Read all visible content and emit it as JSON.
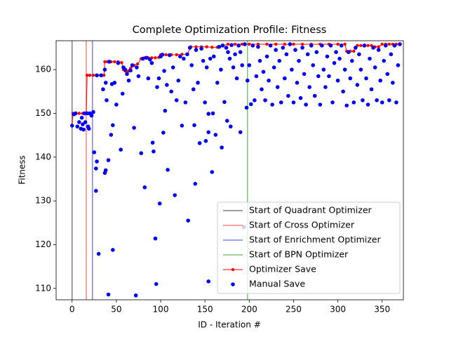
{
  "chart_data": {
    "type": "scatter",
    "title": "Complete Optimization Profile: Fitness",
    "x_label": "ID - Iteration #",
    "y_label": "Fitness",
    "xlim": [
      -18,
      374
    ],
    "ylim": [
      107.4,
      166.6
    ],
    "xticks": [
      0,
      50,
      100,
      150,
      200,
      250,
      300,
      350
    ],
    "yticks": [
      110,
      120,
      130,
      140,
      150,
      160
    ],
    "legend": "lower right",
    "vlines": [
      {
        "name": "Start of Quadrant Optimizer",
        "color": "#7f7f7f",
        "x": 0
      },
      {
        "name": "Start of Cross Optimizer",
        "color": "#ff8080",
        "x": 16
      },
      {
        "name": "Start of Enrichment Optimizer",
        "color": "#8080ff",
        "x": 23
      },
      {
        "name": "Start of BPN Optimizer",
        "color": "#80c080",
        "x": 198
      }
    ],
    "series": [
      {
        "name": "Optimizer Save",
        "color": "#ff0000",
        "style": "line",
        "x": [
          0,
          1,
          4,
          8,
          12,
          16,
          17,
          20,
          24,
          28,
          32,
          36,
          37,
          40,
          44,
          48,
          52,
          56,
          58,
          60,
          62,
          64,
          66,
          68,
          70,
          74,
          78,
          82,
          86,
          90,
          94,
          98,
          100,
          106,
          112,
          118,
          124,
          130,
          134,
          140,
          146,
          152,
          158,
          164,
          170,
          176,
          184,
          192,
          200,
          210,
          220,
          230,
          240,
          250,
          260,
          270,
          280,
          290,
          300,
          308,
          310,
          314,
          318,
          322,
          326,
          330,
          334,
          338,
          342,
          346,
          350,
          354,
          358,
          362,
          366,
          370
        ],
        "values": [
          147.2,
          150,
          150,
          150,
          150,
          150,
          158.7,
          158.7,
          158.7,
          158.7,
          158.7,
          158.7,
          161.8,
          161.8,
          161.8,
          161.8,
          161.8,
          161.6,
          160,
          159.7,
          159.5,
          159.7,
          160.3,
          160.8,
          161,
          161.3,
          162.5,
          162.7,
          162.7,
          162.7,
          162.7,
          162.8,
          163.4,
          163.4,
          163.4,
          163.4,
          163.5,
          163.5,
          165.2,
          165.2,
          165.2,
          165.2,
          165.1,
          165.1,
          165.5,
          165.8,
          165.8,
          165.8,
          165.8,
          165.8,
          165.8,
          165.8,
          165.8,
          165.8,
          165.8,
          165.8,
          165.8,
          165.8,
          165.8,
          165.8,
          164.2,
          164.2,
          164.2,
          165.5,
          165.5,
          165.5,
          165.5,
          165.5,
          165.2,
          165.2,
          165.8,
          165.8,
          165.8,
          165.8,
          165.8,
          165.8
        ]
      },
      {
        "name": "Manual Save",
        "color": "#0000ff",
        "style": "points",
        "x": [
          0,
          2,
          4,
          6,
          8,
          10,
          11,
          12,
          13,
          14,
          15,
          17,
          18,
          19,
          20,
          22,
          24,
          25,
          27,
          27,
          28,
          30,
          28,
          33,
          35,
          37,
          38,
          39,
          37,
          38,
          41,
          41,
          42,
          44,
          45,
          46,
          46,
          48,
          50,
          52,
          55,
          57,
          58,
          60,
          62,
          64,
          66,
          68,
          70,
          72,
          73,
          75,
          78,
          80,
          82,
          84,
          86,
          88,
          90,
          91,
          92,
          94,
          95,
          96,
          98,
          99,
          100,
          102,
          103,
          104,
          105,
          107,
          108,
          110,
          112,
          114,
          116,
          118,
          120,
          122,
          124,
          126,
          128,
          130,
          131,
          133,
          135,
          137,
          138,
          139,
          140,
          142,
          144,
          146,
          148,
          150,
          151,
          152,
          154,
          154,
          154,
          156,
          158,
          159,
          160,
          162,
          164,
          166,
          168,
          169,
          170,
          172,
          174,
          175,
          176,
          178,
          179,
          180,
          182,
          184,
          186,
          188,
          190,
          190,
          192,
          194,
          195,
          197,
          198,
          200,
          202,
          204,
          206,
          208,
          210,
          212,
          214,
          216,
          218,
          220,
          222,
          224,
          226,
          228,
          230,
          232,
          234,
          236,
          238,
          240,
          242,
          244,
          246,
          248,
          250,
          252,
          254,
          256,
          258,
          260,
          262,
          264,
          266,
          268,
          270,
          272,
          274,
          276,
          278,
          280,
          282,
          284,
          286,
          288,
          290,
          292,
          294,
          296,
          298,
          300,
          302,
          304,
          306,
          308,
          310,
          312,
          314,
          316,
          318,
          320,
          322,
          324,
          326,
          328,
          330,
          332,
          334,
          336,
          338,
          340,
          342,
          344,
          346,
          348,
          350,
          352,
          354,
          356,
          358,
          360,
          362,
          364,
          366,
          368,
          370
        ],
        "values": [
          147.2,
          149.8,
          150,
          147,
          148,
          146.5,
          149,
          147.5,
          146.3,
          150,
          148,
          150,
          147,
          146.5,
          150,
          149.5,
          150.3,
          141.1,
          137.4,
          132.3,
          139,
          117.9,
          158.7,
          158.7,
          155.5,
          160,
          157,
          153,
          136.4,
          137,
          139.3,
          108.6,
          161.8,
          145.1,
          156.7,
          147.3,
          118.8,
          157,
          152,
          161.5,
          141.7,
          154.5,
          160.5,
          160,
          159,
          157.5,
          159.8,
          161,
          146.7,
          108.4,
          160.5,
          158.5,
          140.9,
          162.5,
          133.1,
          162.7,
          158,
          162.3,
          161.5,
          143.3,
          141.3,
          121.4,
          111,
          156,
          158,
          129.4,
          163,
          163.4,
          145.6,
          159.7,
          150.6,
          156.5,
          137.1,
          163.3,
          155,
          160.5,
          131.3,
          153,
          157.5,
          163,
          147.2,
          162.5,
          152.5,
          163.5,
          125.5,
          165,
          161,
          155.5,
          147.3,
          133.9,
          164.5,
          157,
          143.2,
          164.8,
          162,
          152.5,
          143.7,
          160.5,
          149.9,
          145.7,
          111.6,
          162.5,
          136.6,
          150,
          163,
          145.1,
          157,
          165.2,
          160,
          142.2,
          165.5,
          152.6,
          165,
          148.3,
          164,
          162.5,
          147,
          165.6,
          160.5,
          163.5,
          158,
          165.5,
          145.7,
          164,
          161,
          124,
          165.8,
          151.3,
          157.5,
          161,
          152.1,
          165.5,
          153,
          158.5,
          165.2,
          162,
          155.5,
          159.5,
          153,
          163,
          157.5,
          165.5,
          152,
          160.5,
          164.5,
          156,
          162,
          152.5,
          165,
          158,
          163.5,
          154,
          165.8,
          160,
          152.5,
          164.5,
          157,
          162,
          153.5,
          165,
          159,
          152,
          163.5,
          156,
          165.5,
          161,
          154,
          164,
          158.5,
          152,
          165.5,
          160,
          156,
          163,
          158.5,
          165.5,
          152.5,
          161.5,
          164,
          157.5,
          162.5,
          165.5,
          155,
          160,
          151.8,
          164,
          158,
          162,
          152.5,
          165,
          156.5,
          163.5,
          160,
          153,
          165.5,
          158,
          152,
          162.5,
          155.5,
          165,
          160.5,
          153,
          164.5,
          157.5,
          152.5,
          162,
          165.5,
          159,
          153,
          163.5,
          157,
          165.5,
          152.5,
          161,
          165.8
        ]
      }
    ]
  }
}
